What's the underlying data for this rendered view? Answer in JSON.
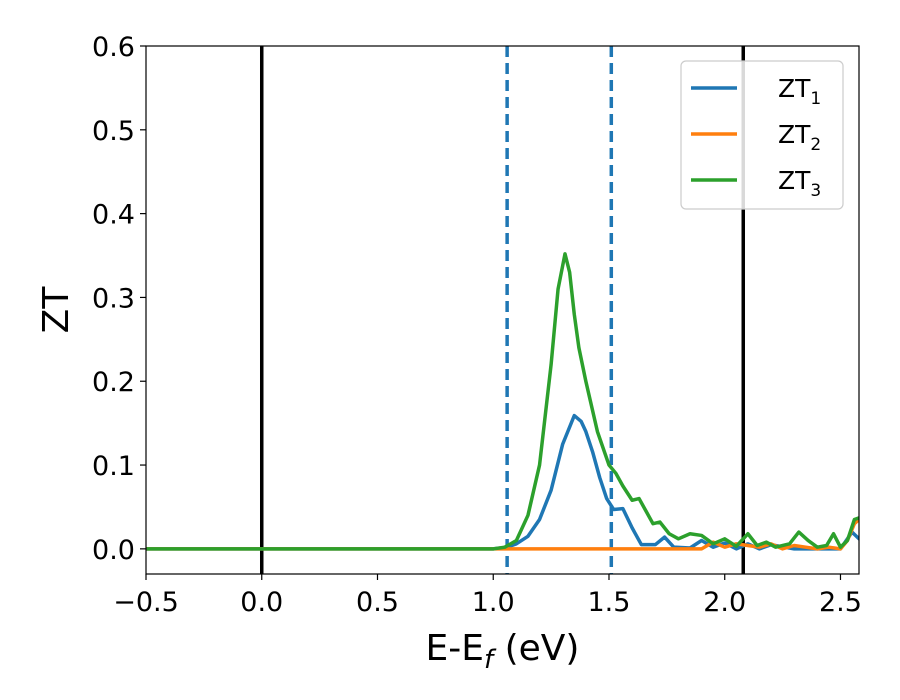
{
  "chart_data": {
    "type": "line",
    "xlabel": "E-E",
    "xlabel_sub": "f",
    "xlabel_unit": " (eV)",
    "ylabel": "ZT",
    "xlim": [
      -0.5,
      2.58
    ],
    "ylim": [
      -0.03,
      0.6
    ],
    "xticks": [
      -0.5,
      0.0,
      0.5,
      1.0,
      1.5,
      2.0,
      2.5
    ],
    "xtick_labels": [
      "−0.5",
      "0.0",
      "0.5",
      "1.0",
      "1.5",
      "2.0",
      "2.5"
    ],
    "yticks": [
      0.0,
      0.1,
      0.2,
      0.3,
      0.4,
      0.5,
      0.6
    ],
    "ytick_labels": [
      "0.0",
      "0.1",
      "0.2",
      "0.3",
      "0.4",
      "0.5",
      "0.6"
    ],
    "grid": false,
    "legend_position": "top-right",
    "vlines": [
      {
        "x": 0.0,
        "style": "solid",
        "color": "#000000"
      },
      {
        "x": 2.08,
        "style": "solid",
        "color": "#000000"
      },
      {
        "x": 1.06,
        "style": "dashed",
        "color": "#1f77b4"
      },
      {
        "x": 1.51,
        "style": "dashed",
        "color": "#1f77b4"
      }
    ],
    "series": [
      {
        "name": "ZT",
        "name_sub": "1",
        "color": "#1f77b4",
        "points": [
          [
            -0.5,
            0
          ],
          [
            1.0,
            0
          ],
          [
            1.06,
            0.002
          ],
          [
            1.1,
            0.006
          ],
          [
            1.15,
            0.015
          ],
          [
            1.2,
            0.035
          ],
          [
            1.25,
            0.07
          ],
          [
            1.3,
            0.125
          ],
          [
            1.35,
            0.159
          ],
          [
            1.38,
            0.152
          ],
          [
            1.4,
            0.14
          ],
          [
            1.43,
            0.115
          ],
          [
            1.46,
            0.085
          ],
          [
            1.49,
            0.06
          ],
          [
            1.52,
            0.047
          ],
          [
            1.56,
            0.048
          ],
          [
            1.6,
            0.025
          ],
          [
            1.64,
            0.005
          ],
          [
            1.7,
            0.005
          ],
          [
            1.74,
            0.014
          ],
          [
            1.78,
            0.002
          ],
          [
            1.85,
            0.001
          ],
          [
            1.9,
            0.01
          ],
          [
            1.95,
            0.002
          ],
          [
            2.0,
            0.007
          ],
          [
            2.05,
            0.0
          ],
          [
            2.1,
            0.006
          ],
          [
            2.15,
            0.0
          ],
          [
            2.2,
            0.005
          ],
          [
            2.3,
            0.0
          ],
          [
            2.4,
            0.0
          ],
          [
            2.5,
            0.0
          ],
          [
            2.55,
            0.02
          ],
          [
            2.58,
            0.012
          ]
        ]
      },
      {
        "name": "ZT",
        "name_sub": "2",
        "color": "#ff7f0e",
        "points": [
          [
            -0.5,
            0
          ],
          [
            1.9,
            0.0
          ],
          [
            1.95,
            0.008
          ],
          [
            2.0,
            0.002
          ],
          [
            2.05,
            0.006
          ],
          [
            2.1,
            0.004
          ],
          [
            2.15,
            0.002
          ],
          [
            2.2,
            0.006
          ],
          [
            2.25,
            0.0
          ],
          [
            2.3,
            0.004
          ],
          [
            2.35,
            0.002
          ],
          [
            2.4,
            0.0
          ],
          [
            2.45,
            0.002
          ],
          [
            2.5,
            0.0
          ],
          [
            2.53,
            0.01
          ],
          [
            2.56,
            0.03
          ],
          [
            2.58,
            0.035
          ]
        ]
      },
      {
        "name": "ZT",
        "name_sub": "3",
        "color": "#2ca02c",
        "points": [
          [
            -0.5,
            0
          ],
          [
            1.0,
            0
          ],
          [
            1.05,
            0.002
          ],
          [
            1.1,
            0.01
          ],
          [
            1.15,
            0.04
          ],
          [
            1.2,
            0.1
          ],
          [
            1.25,
            0.22
          ],
          [
            1.28,
            0.31
          ],
          [
            1.31,
            0.352
          ],
          [
            1.33,
            0.33
          ],
          [
            1.35,
            0.28
          ],
          [
            1.37,
            0.24
          ],
          [
            1.4,
            0.2
          ],
          [
            1.45,
            0.14
          ],
          [
            1.5,
            0.1
          ],
          [
            1.53,
            0.09
          ],
          [
            1.56,
            0.075
          ],
          [
            1.6,
            0.058
          ],
          [
            1.63,
            0.06
          ],
          [
            1.66,
            0.045
          ],
          [
            1.69,
            0.03
          ],
          [
            1.72,
            0.032
          ],
          [
            1.76,
            0.018
          ],
          [
            1.8,
            0.012
          ],
          [
            1.85,
            0.018
          ],
          [
            1.9,
            0.016
          ],
          [
            1.95,
            0.006
          ],
          [
            2.0,
            0.012
          ],
          [
            2.05,
            0.003
          ],
          [
            2.1,
            0.018
          ],
          [
            2.14,
            0.004
          ],
          [
            2.18,
            0.008
          ],
          [
            2.22,
            0.002
          ],
          [
            2.28,
            0.006
          ],
          [
            2.32,
            0.02
          ],
          [
            2.36,
            0.01
          ],
          [
            2.4,
            0.002
          ],
          [
            2.44,
            0.004
          ],
          [
            2.47,
            0.018
          ],
          [
            2.5,
            0.002
          ],
          [
            2.53,
            0.01
          ],
          [
            2.56,
            0.035
          ],
          [
            2.58,
            0.037
          ]
        ]
      }
    ]
  }
}
